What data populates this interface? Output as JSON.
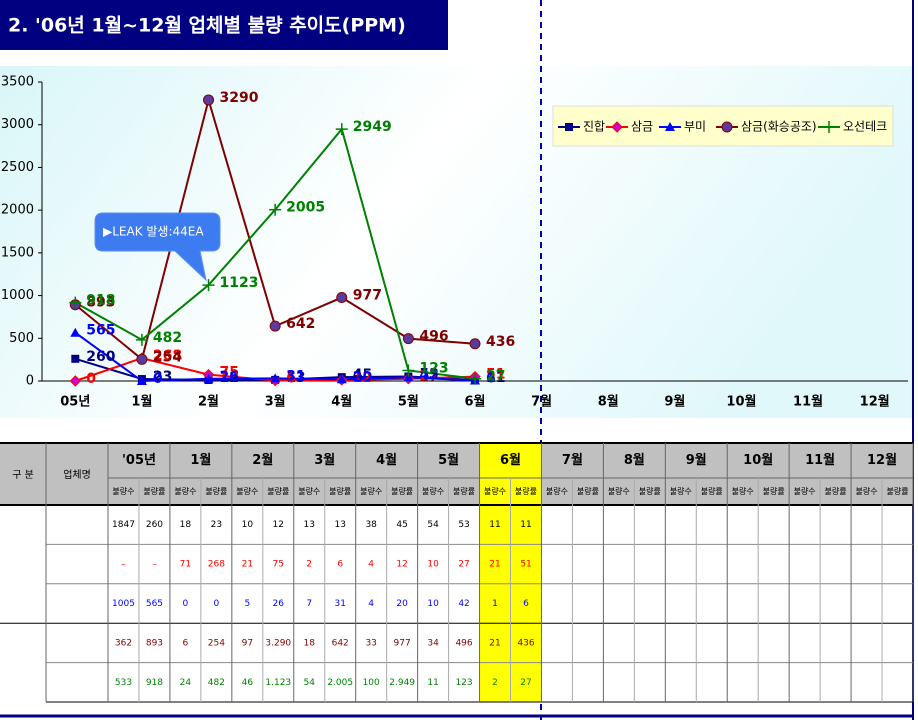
{
  "chart_data": {
    "type": "line",
    "title": "2. '06년 1월~12월 업체별 불량 추이도(PPM)",
    "annotation": "▶LEAK 발생:44EA",
    "categories": [
      "05년",
      "1월",
      "2월",
      "3월",
      "4월",
      "5월",
      "6월",
      "7월",
      "8월",
      "9월",
      "10월",
      "11월",
      "12월"
    ],
    "series": [
      {
        "name": "진합",
        "color": "#000080",
        "marker": "square",
        "values": [
          260,
          23,
          12,
          13,
          45,
          53,
          11,
          null,
          null,
          null,
          null,
          null,
          null
        ]
      },
      {
        "name": "삼금",
        "color": "#ff0000",
        "marker": "diamond",
        "values": [
          0,
          268,
          75,
          6,
          12,
          27,
          51,
          null,
          null,
          null,
          null,
          null,
          null
        ]
      },
      {
        "name": "부미",
        "color": "#0000ff",
        "marker": "triangle",
        "values": [
          565,
          0,
          26,
          31,
          20,
          42,
          6,
          null,
          null,
          null,
          null,
          null,
          null
        ]
      },
      {
        "name": "삼금(화승공조)",
        "color": "#800000",
        "marker": "circle",
        "values": [
          893,
          254,
          3290,
          642,
          977,
          496,
          436,
          null,
          null,
          null,
          null,
          null,
          null
        ]
      },
      {
        "name": "오선테크",
        "color": "#008000",
        "marker": "plus",
        "values": [
          918,
          482,
          1123,
          2005,
          2949,
          123,
          27,
          null,
          null,
          null,
          null,
          null,
          null
        ]
      }
    ],
    "ylim": [
      0,
      3500
    ],
    "yticks": [
      0,
      500,
      1000,
      1500,
      2000,
      2500,
      3000,
      3500
    ],
    "legend": "top-right"
  },
  "table": {
    "header": [
      "구 분",
      "업체명"
    ],
    "periods": [
      "'05년",
      "1월",
      "2월",
      "3월",
      "4월",
      "5월",
      "6월",
      "7월",
      "8월",
      "9월",
      "10월",
      "11월",
      "12월"
    ],
    "subheaders": [
      "불량수",
      "불량률"
    ],
    "row_colors": [
      "#000000",
      "#ff0000",
      "#0000ff",
      "#800000",
      "#008000"
    ],
    "rows": [
      [
        "1847",
        "260",
        "18",
        "23",
        "10",
        "12",
        "13",
        "13",
        "38",
        "45",
        "54",
        "53",
        "11",
        "11"
      ],
      [
        "–",
        "–",
        "71",
        "268",
        "21",
        "75",
        "2",
        "6",
        "4",
        "12",
        "10",
        "27",
        "21",
        "51"
      ],
      [
        "1005",
        "565",
        "0",
        "0",
        "5",
        "26",
        "7",
        "31",
        "4",
        "20",
        "10",
        "42",
        "1",
        "6"
      ],
      [
        "362",
        "893",
        "6",
        "254",
        "97",
        "3.290",
        "18",
        "642",
        "33",
        "977",
        "34",
        "496",
        "21",
        "436"
      ],
      [
        "533",
        "918",
        "24",
        "482",
        "46",
        "1.123",
        "54",
        "2.005",
        "100",
        "2.949",
        "11",
        "123",
        "2",
        "27"
      ]
    ]
  }
}
